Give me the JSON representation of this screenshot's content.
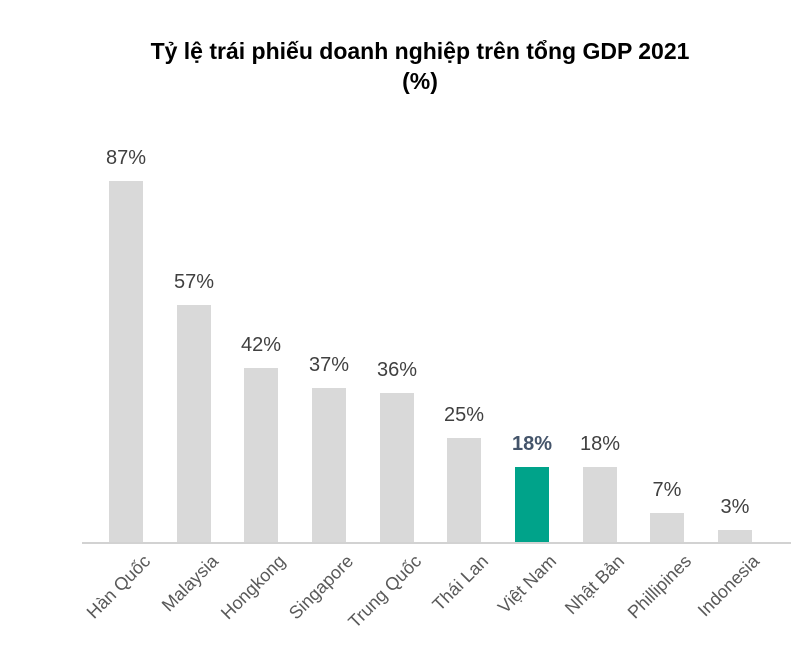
{
  "title": {
    "line1": "Tỷ lệ trái phiếu doanh nghiệp trên tổng GDP 2021",
    "line2": "(%)"
  },
  "chart_data": {
    "type": "bar",
    "title": "Tỷ lệ trái phiếu doanh nghiệp trên tổng GDP 2021 (%)",
    "categories": [
      "Hàn Quốc",
      "Malaysia",
      "Hongkong",
      "Singapore",
      "Trung Quốc",
      "Thái Lan",
      "Việt Nam",
      "Nhật Bản",
      "Phillipines",
      "Indonesia"
    ],
    "values": [
      87,
      57,
      42,
      37,
      36,
      25,
      18,
      18,
      7,
      3
    ],
    "value_labels": [
      "87%",
      "57%",
      "42%",
      "37%",
      "36%",
      "25%",
      "18%",
      "18%",
      "7%",
      "3%"
    ],
    "xlabel": "",
    "ylabel": "",
    "ylim": [
      0,
      100
    ],
    "grid": false,
    "legend": "none",
    "y_axis_visible": false,
    "data_labels_visible": true,
    "x_label_rotation_deg": 45,
    "highlight_category": "Việt Nam",
    "highlight_index": 6,
    "colors": {
      "bar": "#d9d9d9",
      "highlight_bar": "#00a38a",
      "value_label": "#404040",
      "highlight_value_label": "#44546a",
      "axis_label": "#595959",
      "axis_line": "#d2d2d2",
      "title": "#000000",
      "background": "#ffffff"
    }
  }
}
